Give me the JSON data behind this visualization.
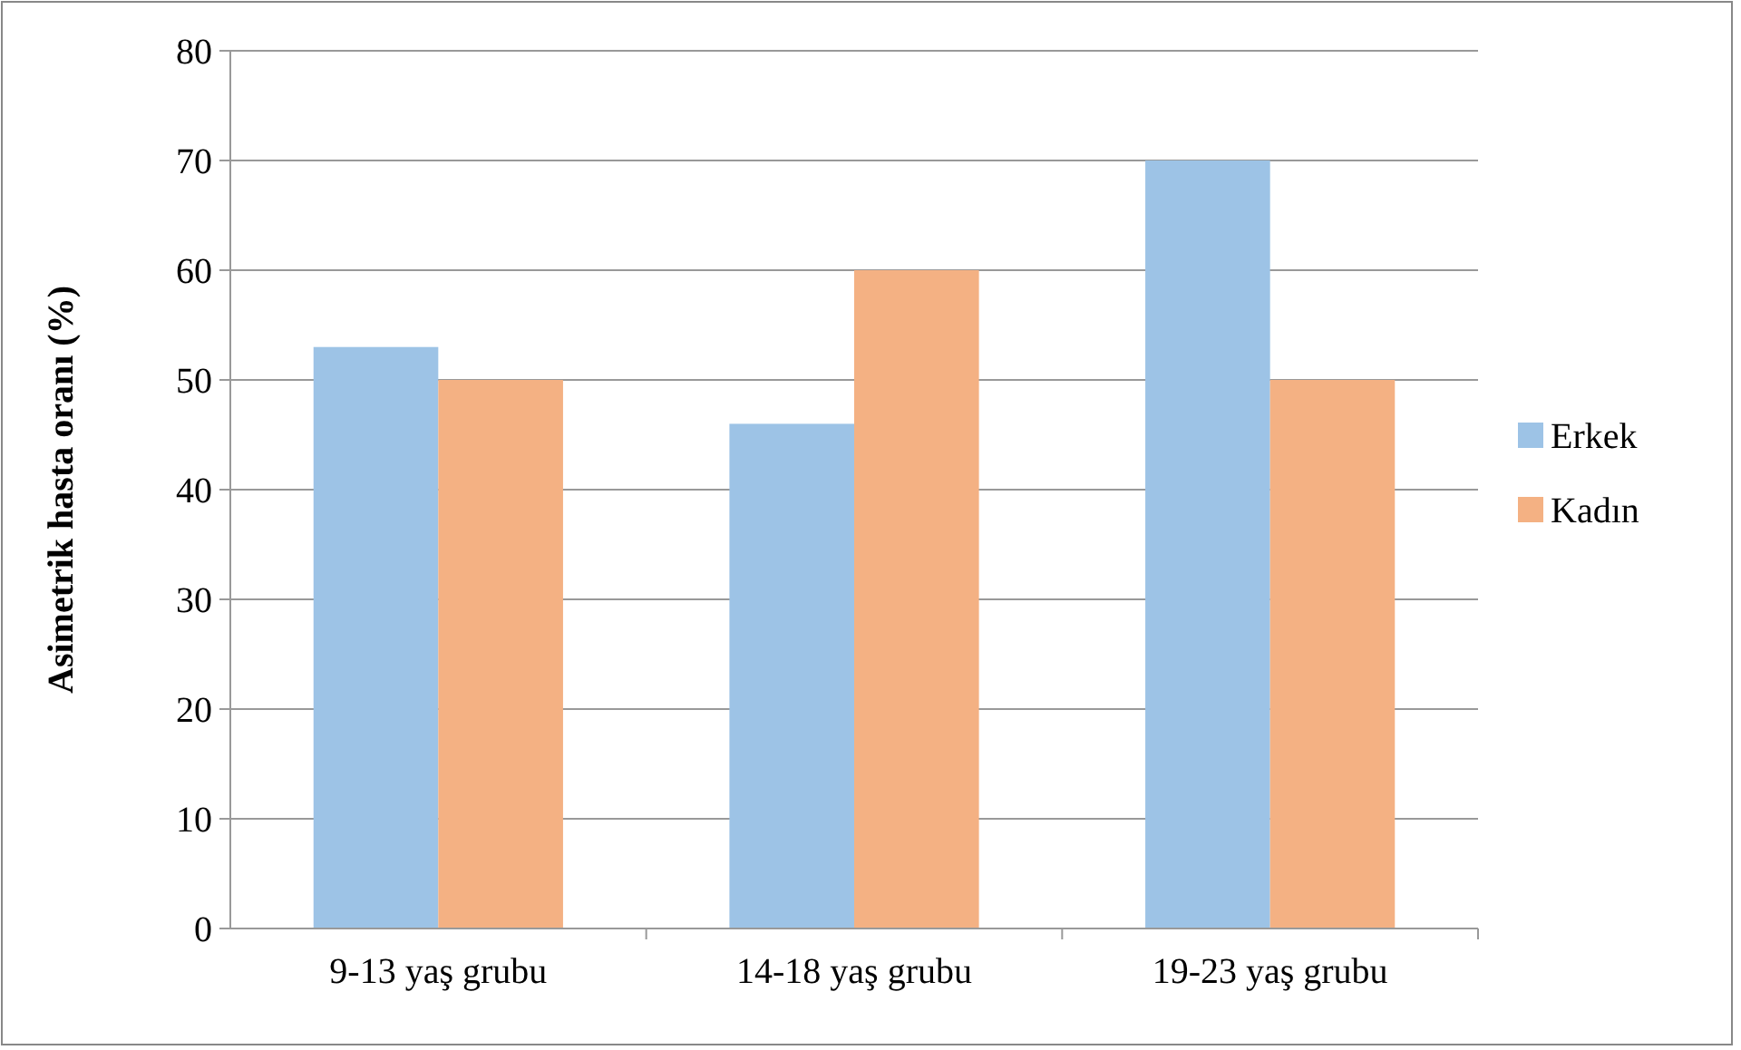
{
  "chart_data": {
    "type": "bar",
    "ylabel": "Asimetrik hasta oranı (%)",
    "categories": [
      "9-13 yaş grubu",
      "14-18 yaş grubu",
      "19-23 yaş grubu"
    ],
    "series": [
      {
        "name": "Erkek",
        "color": "#9dc3e6",
        "values": [
          53,
          46,
          70
        ]
      },
      {
        "name": "Kadın",
        "color": "#f4b183",
        "values": [
          50,
          60,
          50
        ]
      }
    ],
    "ylim": [
      0,
      80
    ],
    "yticks": [
      0,
      10,
      20,
      30,
      40,
      50,
      60,
      70,
      80
    ],
    "grid": "y",
    "legend": "right"
  }
}
